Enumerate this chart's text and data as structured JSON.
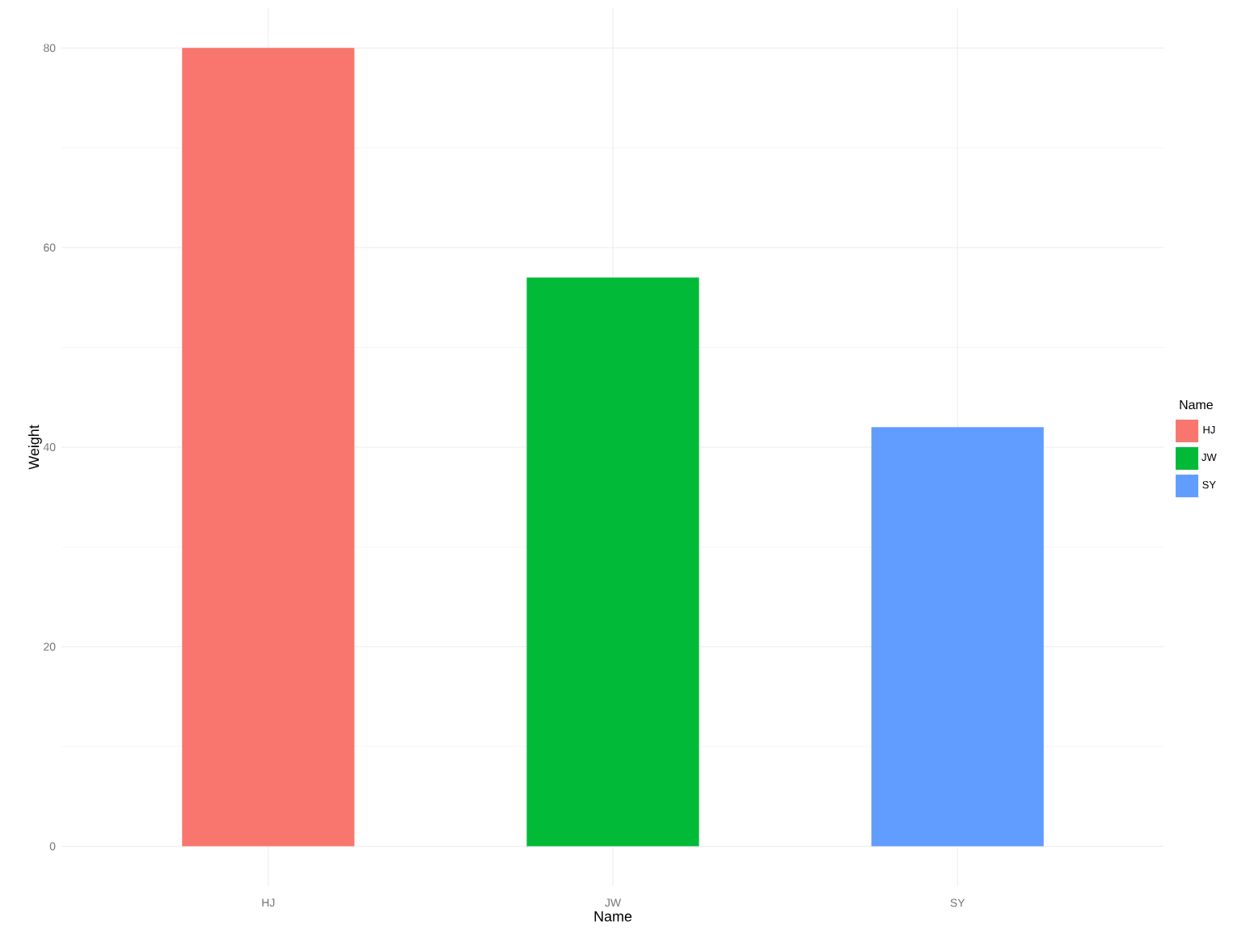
{
  "chart_data": {
    "type": "bar",
    "xlabel": "Name",
    "ylabel": "Weight",
    "legend_title": "Name",
    "categories": [
      "HJ",
      "JW",
      "SY"
    ],
    "series": [
      {
        "name": "HJ",
        "color": "#f8766d",
        "values": [
          80,
          null,
          null
        ]
      },
      {
        "name": "JW",
        "color": "#00ba38",
        "values": [
          null,
          57,
          null
        ]
      },
      {
        "name": "SY",
        "color": "#619cff",
        "values": [
          null,
          null,
          42
        ]
      }
    ],
    "ylim": [
      -4,
      84
    ],
    "yticks": [
      0,
      20,
      40,
      60,
      80
    ],
    "grid": true,
    "legend": "right"
  }
}
